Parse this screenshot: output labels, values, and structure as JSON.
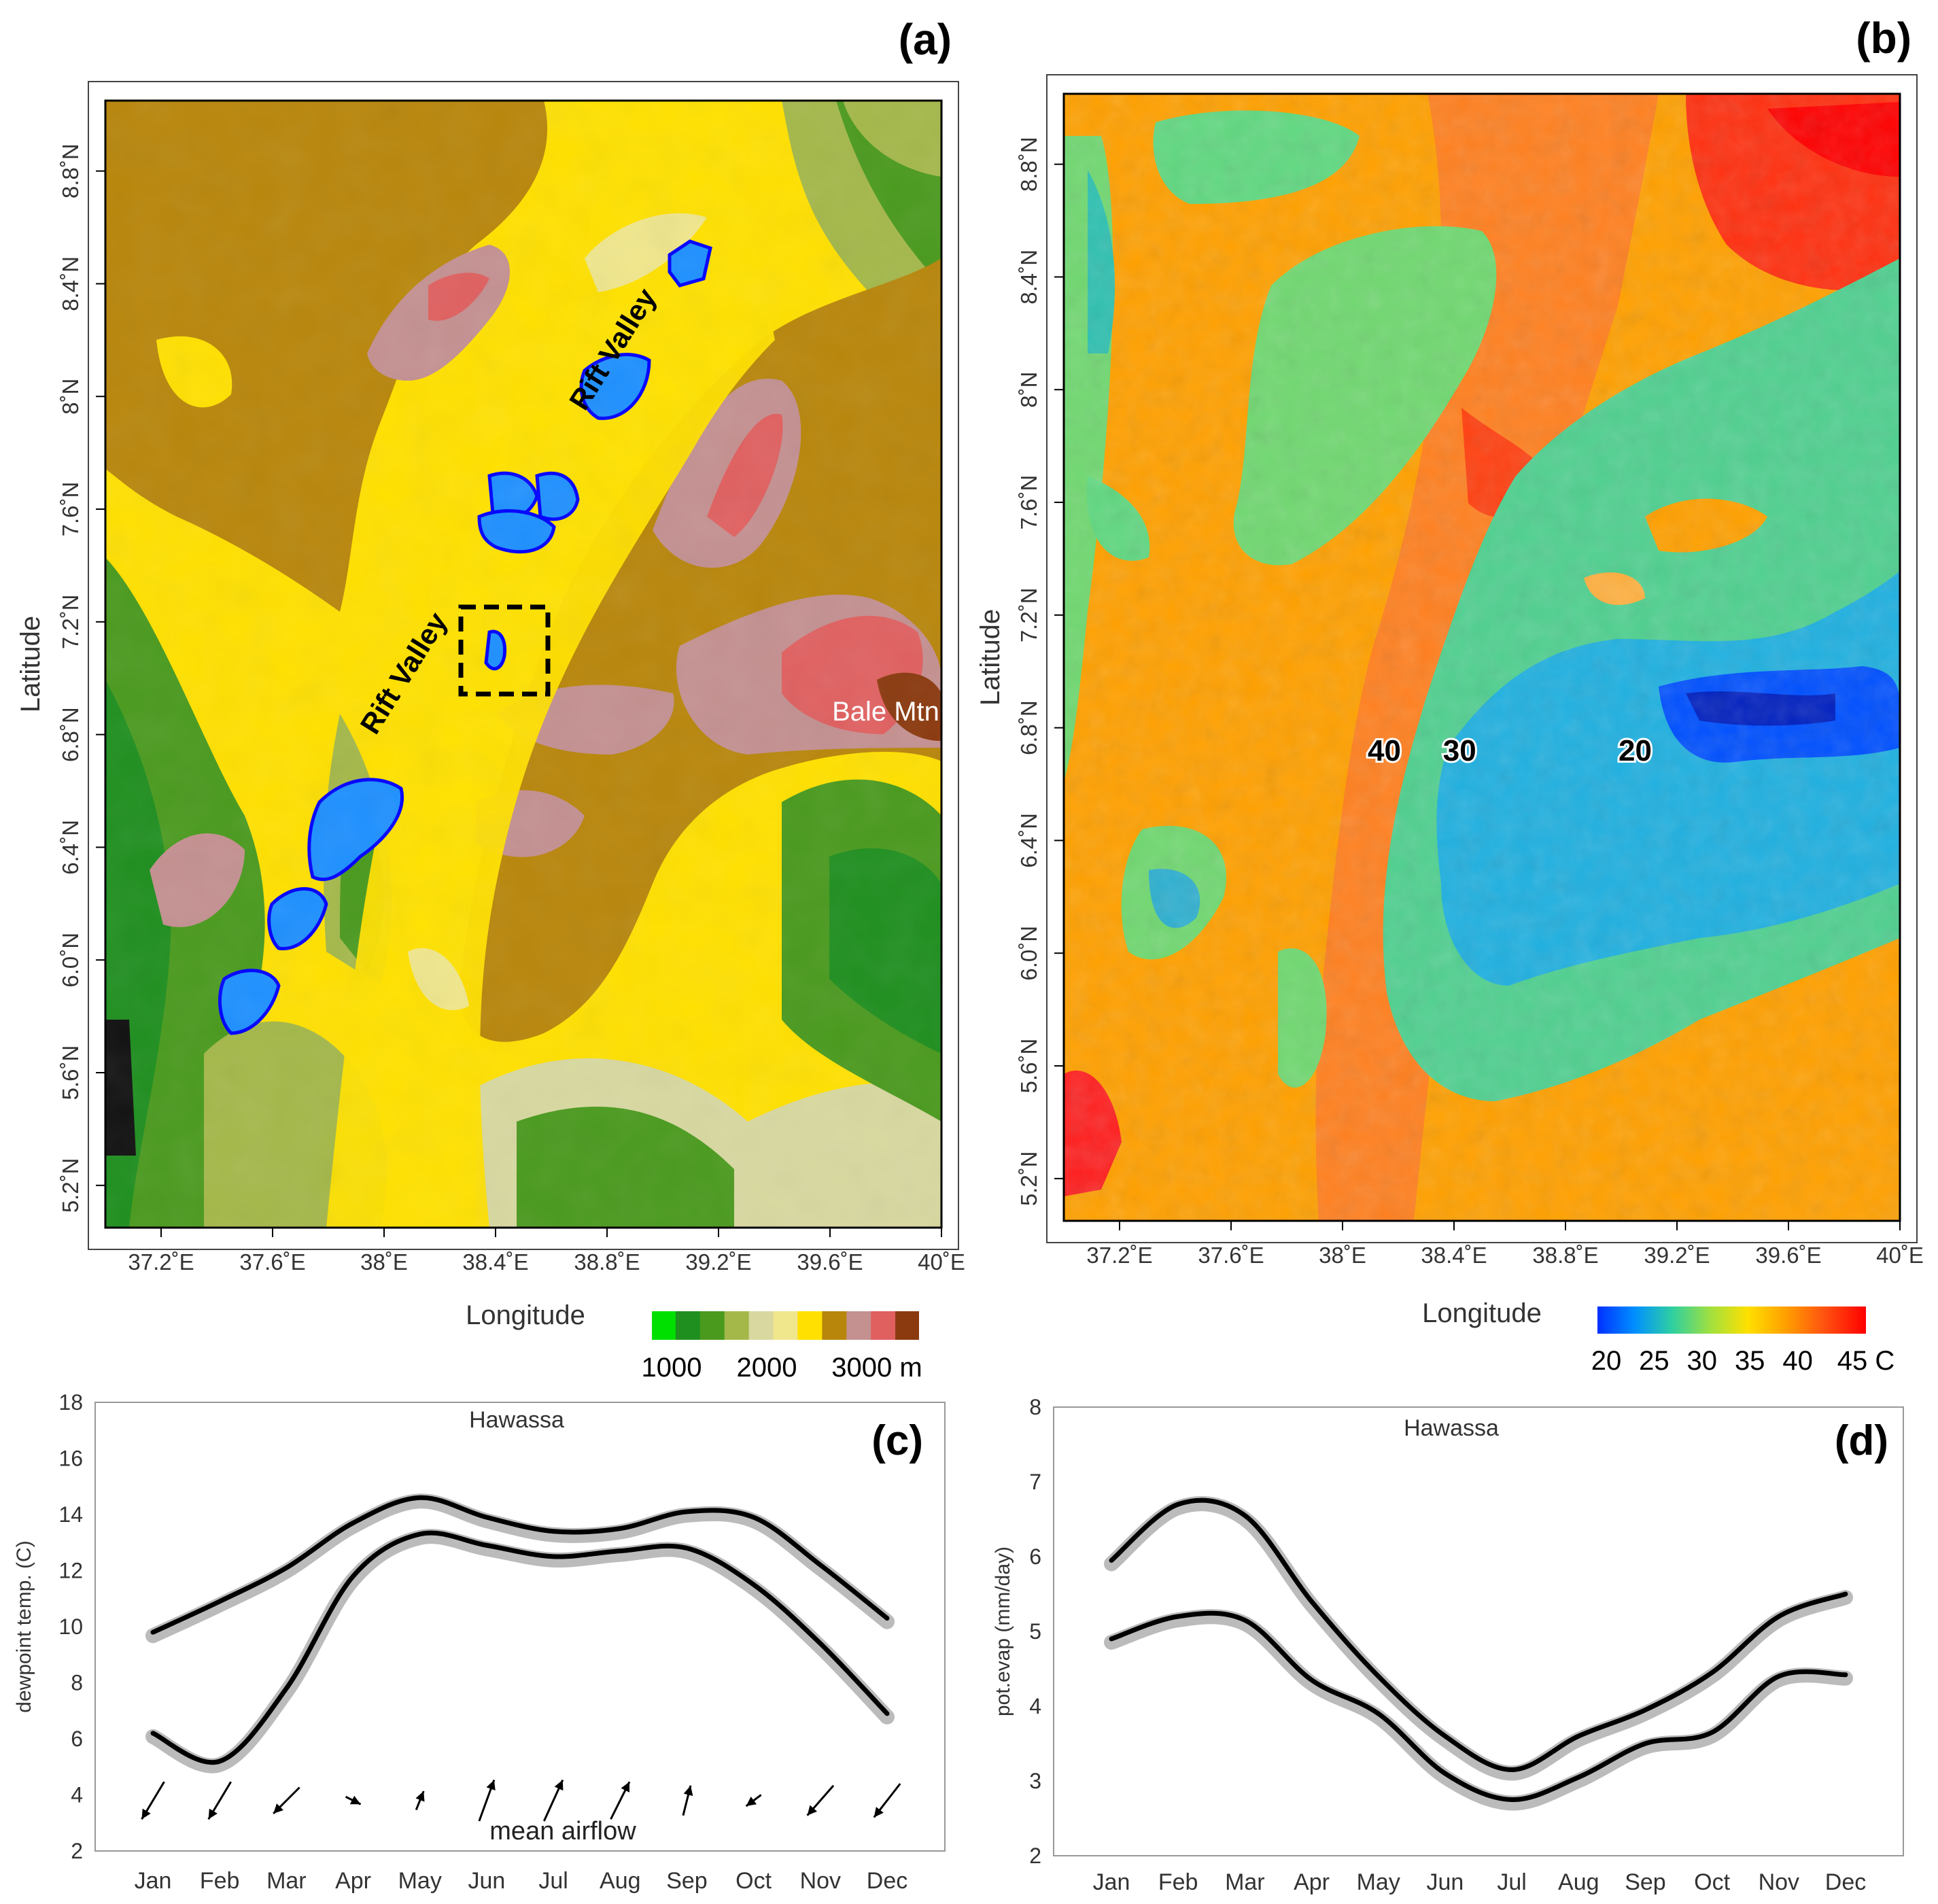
{
  "colors": {
    "elevation_scale": [
      "#00e000",
      "#1f8f1f",
      "#4a9a1e",
      "#a4b84a",
      "#d8d8a0",
      "#f0e68c",
      "#ffe000",
      "#b8860b",
      "#c49090",
      "#e06060",
      "#8b3a0f"
    ],
    "temperature_scale": [
      "#0030ff",
      "#0090ff",
      "#30d0a0",
      "#a0e040",
      "#ffe000",
      "#ffa000",
      "#ff5010",
      "#ff0000"
    ],
    "lake": "#1e90ff",
    "lake_edge": "#0000ff",
    "curve_main": "#000000",
    "curve_ensemble": "#bbbbbb"
  },
  "chart_data": [
    {
      "panel": "(a)",
      "type": "heatmap",
      "xlabel": "Longitude",
      "ylabel": "Latitude",
      "xlim": [
        37.0,
        40.0
      ],
      "ylim": [
        5.05,
        9.05
      ],
      "xticks": [
        "37.2˚E",
        "37.6˚E",
        "38˚E",
        "38.4˚E",
        "38.8˚E",
        "39.2˚E",
        "39.6˚E",
        "40˚E"
      ],
      "xtick_values": [
        37.2,
        37.6,
        38.0,
        38.4,
        38.8,
        39.2,
        39.6,
        40.0
      ],
      "yticks": [
        "5.2˚N",
        "5.6˚N",
        "6.0˚N",
        "6.4˚N",
        "6.8˚N",
        "7.2˚N",
        "7.6˚N",
        "8˚N",
        "8.4˚N",
        "8.8˚N"
      ],
      "ytick_values": [
        5.2,
        5.6,
        6.0,
        6.4,
        6.8,
        7.2,
        7.6,
        8.0,
        8.4,
        8.8
      ],
      "colorbar": {
        "labels": [
          "1000",
          "2000",
          "3000 m"
        ]
      },
      "annotations": [
        {
          "text": "Rift Valley",
          "lon": 38.85,
          "lat": 8.15,
          "rotate": -58
        },
        {
          "text": "Rift Valley",
          "lon": 38.1,
          "lat": 7.0,
          "rotate": -58
        },
        {
          "text": "Bale Mtn",
          "lon": 39.8,
          "lat": 6.85
        }
      ]
    },
    {
      "panel": "(b)",
      "type": "heatmap",
      "xlabel": "Longitude",
      "ylabel": "Latitude",
      "xlim": [
        37.0,
        40.0
      ],
      "ylim": [
        5.05,
        9.05
      ],
      "xticks": [
        "37.2˚E",
        "37.6˚E",
        "38˚E",
        "38.4˚E",
        "38.8˚E",
        "39.2˚E",
        "39.6˚E",
        "40˚E"
      ],
      "xtick_values": [
        37.2,
        37.6,
        38.0,
        38.4,
        38.8,
        39.2,
        39.6,
        40.0
      ],
      "yticks": [
        "5.2˚N",
        "5.6˚N",
        "6.0˚N",
        "6.4˚N",
        "6.8˚N",
        "7.2˚N",
        "7.6˚N",
        "8˚N",
        "8.4˚N",
        "8.8˚N"
      ],
      "ytick_values": [
        5.2,
        5.6,
        6.0,
        6.4,
        6.8,
        7.2,
        7.6,
        8.0,
        8.4,
        8.8
      ],
      "colorbar": {
        "labels": [
          "20",
          "25",
          "30",
          "35",
          "40",
          "45 C"
        ],
        "range": [
          20,
          45
        ]
      },
      "contour_labels": [
        {
          "text": "40",
          "lon": 38.15,
          "lat": 6.72
        },
        {
          "text": "30",
          "lon": 38.42,
          "lat": 6.72
        },
        {
          "text": "20",
          "lon": 39.05,
          "lat": 6.72
        }
      ]
    },
    {
      "panel": "(c)",
      "type": "line",
      "title": "Hawassa",
      "ylabel": "dewpoint temp. (C)",
      "categories": [
        "Jan",
        "Feb",
        "Mar",
        "Apr",
        "May",
        "Jun",
        "Jul",
        "Aug",
        "Sep",
        "Oct",
        "Nov",
        "Dec"
      ],
      "ylim": [
        2,
        18
      ],
      "yticks": [
        "2",
        "4",
        "6",
        "8",
        "10",
        "12",
        "14",
        "16",
        "18"
      ],
      "series": [
        {
          "values": [
            9.8,
            10.9,
            12.1,
            13.7,
            14.6,
            13.9,
            13.4,
            13.5,
            14.1,
            13.9,
            12.2,
            10.3
          ]
        },
        {
          "values": [
            6.2,
            5.2,
            7.8,
            11.8,
            13.3,
            12.9,
            12.5,
            12.7,
            12.8,
            11.5,
            9.4,
            6.9
          ]
        }
      ],
      "annotation": "mean airflow",
      "airflow_vectors": [
        {
          "month": "Jan",
          "u": -0.6,
          "v": -1.0
        },
        {
          "month": "Feb",
          "u": -0.6,
          "v": -1.0
        },
        {
          "month": "Mar",
          "u": -0.7,
          "v": -0.7
        },
        {
          "month": "Apr",
          "u": 0.4,
          "v": -0.2
        },
        {
          "month": "May",
          "u": 0.2,
          "v": 0.5
        },
        {
          "month": "Jun",
          "u": 0.4,
          "v": 1.1
        },
        {
          "month": "Jul",
          "u": 0.5,
          "v": 1.1
        },
        {
          "month": "Aug",
          "u": 0.5,
          "v": 1.0
        },
        {
          "month": "Sep",
          "u": 0.2,
          "v": 0.8
        },
        {
          "month": "Oct",
          "u": -0.4,
          "v": -0.3
        },
        {
          "month": "Nov",
          "u": -0.7,
          "v": -0.8
        },
        {
          "month": "Dec",
          "u": -0.7,
          "v": -0.9
        }
      ]
    },
    {
      "panel": "(d)",
      "type": "line",
      "title": "Hawassa",
      "ylabel": "pot.evap (mm/day)",
      "categories": [
        "Jan",
        "Feb",
        "Mar",
        "Apr",
        "May",
        "Jun",
        "Jul",
        "Aug",
        "Sep",
        "Oct",
        "Nov",
        "Dec"
      ],
      "ylim": [
        2,
        8
      ],
      "yticks": [
        "2",
        "3",
        "4",
        "5",
        "6",
        "7",
        "8"
      ],
      "series": [
        {
          "values": [
            5.95,
            6.7,
            6.55,
            5.4,
            4.4,
            3.6,
            3.15,
            3.6,
            3.95,
            4.45,
            5.2,
            5.5
          ]
        },
        {
          "values": [
            4.9,
            5.2,
            5.15,
            4.35,
            3.9,
            3.1,
            2.75,
            3.05,
            3.5,
            3.65,
            4.4,
            4.42
          ]
        }
      ]
    }
  ]
}
